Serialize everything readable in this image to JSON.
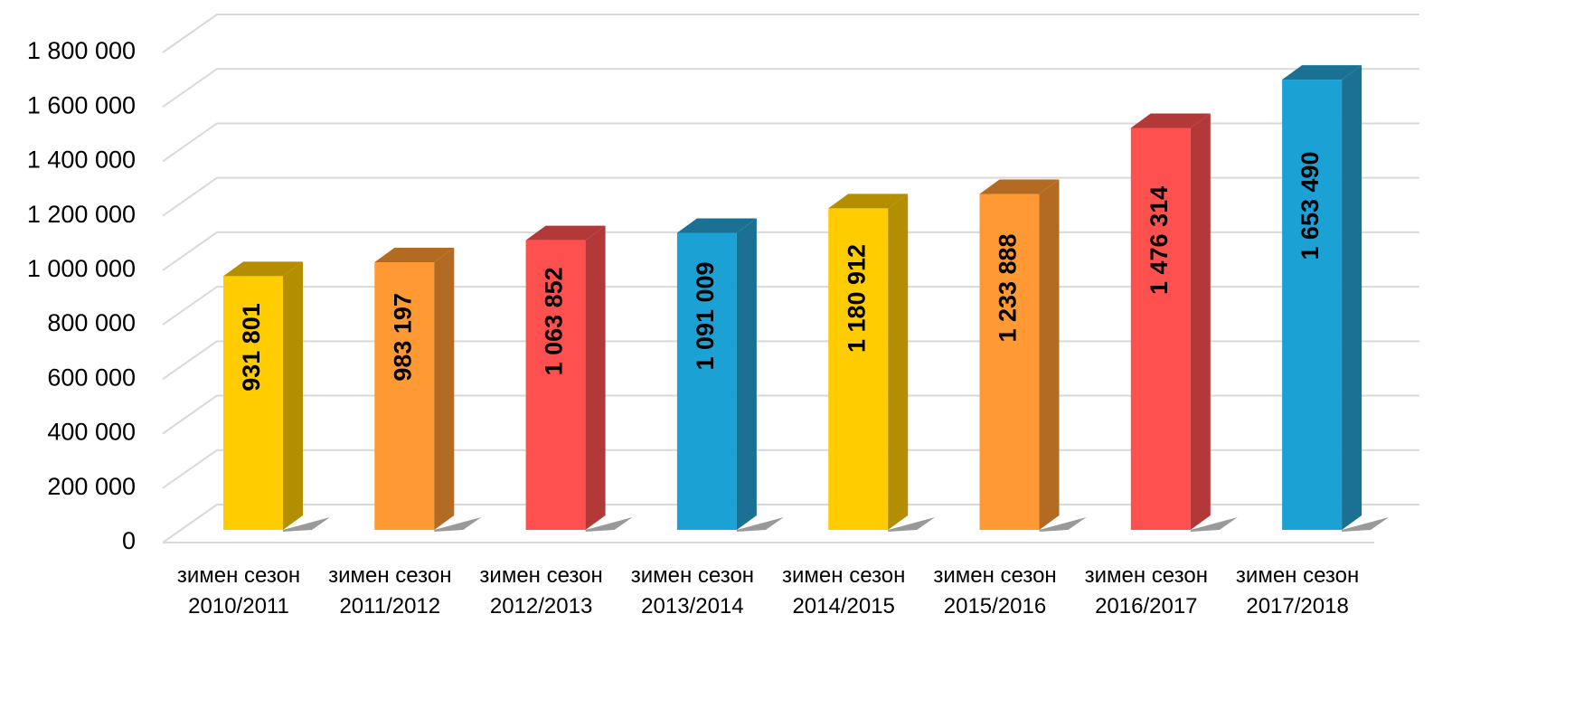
{
  "chart_data": {
    "type": "bar3d",
    "categories": [
      "зимен сезон 2010/2011",
      "зимен сезон 2011/2012",
      "зимен сезон 2012/2013",
      "зимен сезон 2013/2014",
      "зимен сезон 2014/2015",
      "зимен сезон 2015/2016",
      "зимен сезон 2016/2017",
      "зимен сезон 2017/2018"
    ],
    "values": [
      931801,
      983197,
      1063852,
      1091009,
      1180912,
      1233888,
      1476314,
      1653490
    ],
    "value_labels": [
      "931 801",
      "983 197",
      "1 063 852",
      "1 091 009",
      "1 180 912",
      "1 233 888",
      "1 476 314",
      "1 653 490"
    ],
    "colors": [
      "#ffcc00",
      "#ff9933",
      "#ff5050",
      "#1ba1d4",
      "#ffcc00",
      "#ff9933",
      "#ff5050",
      "#1ba1d4"
    ],
    "side_colors": [
      "#b38f00",
      "#b36b24",
      "#b33838",
      "#1a7194",
      "#b38f00",
      "#b36b24",
      "#b33838",
      "#1a7194"
    ],
    "ylim": [
      0,
      1800000
    ],
    "yticks": [
      0,
      {
        "value": 200000,
        "label": "200 000"
      },
      {
        "value": 400000,
        "label": "400 000"
      },
      {
        "value": 600000,
        "label": "600 000"
      },
      {
        "value": 800000,
        "label": "800 000"
      },
      {
        "value": 1000000,
        "label": "1 000 000"
      },
      {
        "value": 1200000,
        "label": "1 200 000"
      },
      {
        "value": 1400000,
        "label": "1 400 000"
      },
      {
        "value": 1600000,
        "label": "1 600 000"
      },
      {
        "value": 1800000,
        "label": "1 800 000"
      }
    ],
    "grid": true
  }
}
